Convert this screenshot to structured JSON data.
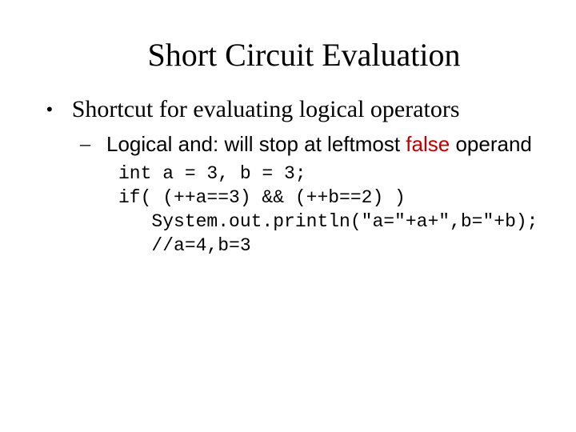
{
  "slide": {
    "title": "Short Circuit Evaluation",
    "title_fontsize": 40,
    "title_color": "#000000",
    "bullet": {
      "marker": "•",
      "text": "Shortcut for evaluating logical operators",
      "fontsize": 30
    },
    "sub": {
      "marker": "–",
      "prefix": "Logical and: will stop at leftmost ",
      "highlight_word": "false",
      "highlight_color": "#c00000",
      "suffix": " operand",
      "fontsize": 26,
      "font_family": "Arial"
    },
    "code": {
      "font_family": "Courier New",
      "fontsize": 23,
      "color": "#000000",
      "lines": [
        "int a = 3, b = 3;",
        "if( (++a==3) && (++b==2) )",
        "   System.out.println(\"a=\"+a+\",b=\"+b);",
        "   //a=4,b=3"
      ]
    },
    "background_color": "#ffffff"
  }
}
